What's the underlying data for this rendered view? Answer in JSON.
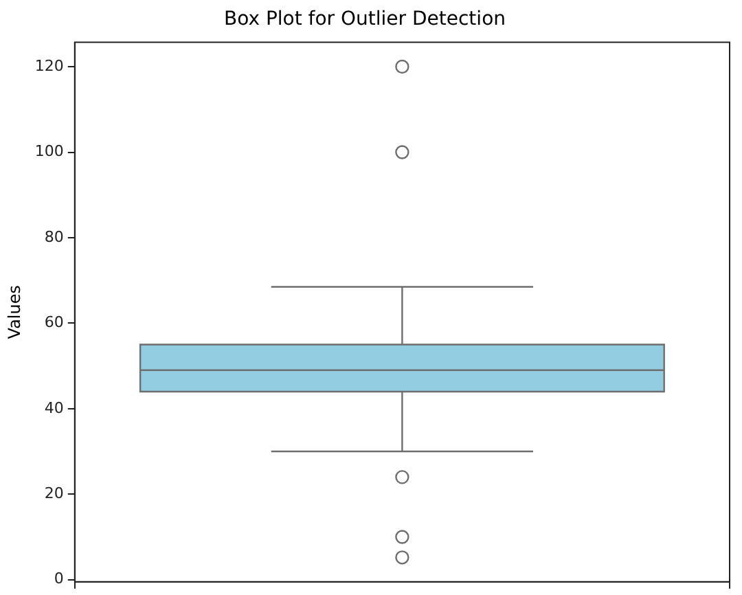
{
  "chart_data": {
    "type": "box",
    "title": "Box Plot for Outlier Detection",
    "ylabel": "Values",
    "categories": [
      null
    ],
    "series": [
      {
        "color": "#92cde2",
        "boxes": [
          {
            "low": 30,
            "q1": 44,
            "median": 49,
            "q3": 55,
            "high": 68.5,
            "outliers": [
              120,
              100,
              24,
              10,
              5.2
            ]
          }
        ]
      }
    ],
    "ylim": [
      -0.5,
      125.7
    ],
    "yticks": [
      0,
      20,
      40,
      60,
      80,
      100,
      120
    ],
    "tick_labels": "y",
    "grid": false,
    "legend": false
  }
}
